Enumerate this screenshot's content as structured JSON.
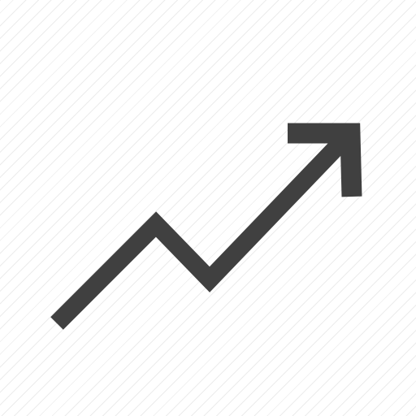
{
  "icon": {
    "name": "trending-up-icon",
    "color": "#404040"
  },
  "background": {
    "pattern": "diagonal-hatching",
    "base_color": "#ffffff",
    "line_color": "#ececec"
  }
}
